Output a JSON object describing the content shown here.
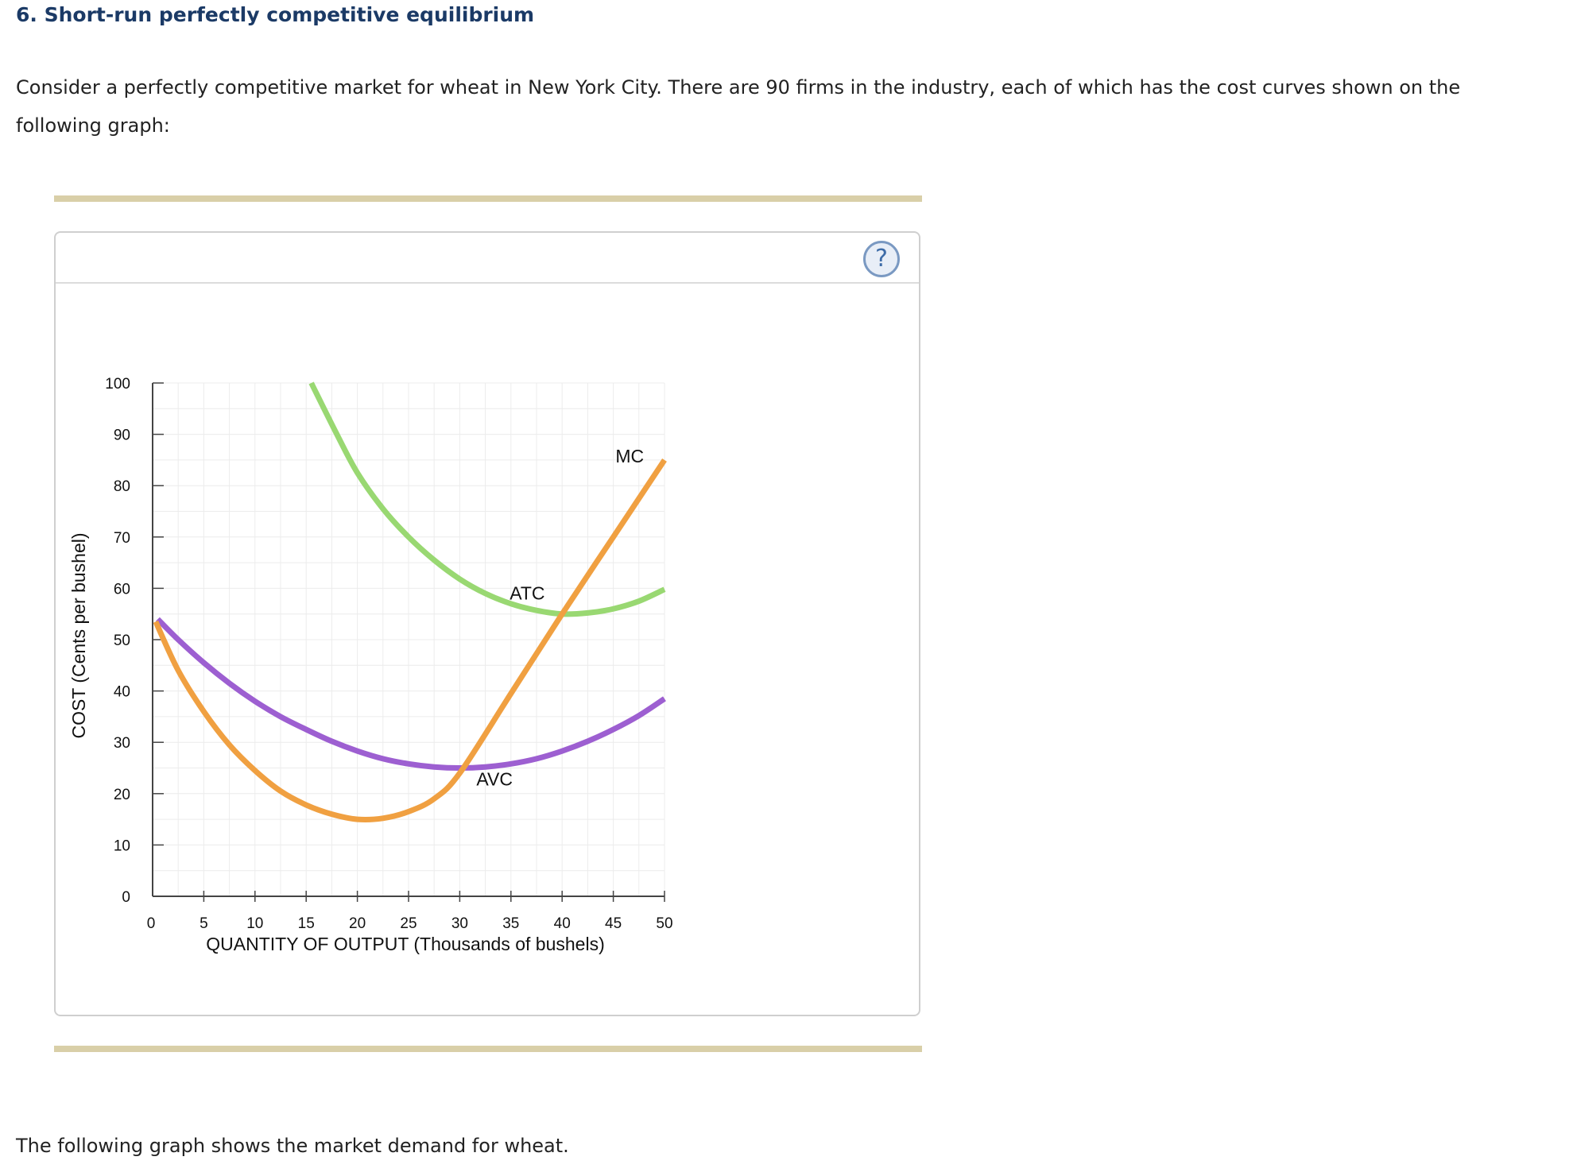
{
  "question": {
    "title": "6. Short-run perfectly competitive equilibrium",
    "intro": "Consider a perfectly competitive market for wheat in New York City. There are 90 firms in the industry, each of which has the cost curves shown on the following graph:",
    "footer": "The following graph shows the market demand for wheat."
  },
  "help_button": {
    "label": "?",
    "icon": "question-mark-icon"
  },
  "chart_data": {
    "type": "line",
    "xlabel": "QUANTITY OF OUTPUT (Thousands of bushels)",
    "ylabel": "COST (Cents per bushel)",
    "xlim": [
      0,
      50
    ],
    "ylim": [
      0,
      100
    ],
    "xticks": [
      0,
      5,
      10,
      15,
      20,
      25,
      30,
      35,
      40,
      45,
      50
    ],
    "yticks": [
      0,
      10,
      20,
      30,
      40,
      50,
      60,
      70,
      80,
      90,
      100
    ],
    "grid": true,
    "series": [
      {
        "name": "ATC",
        "color": "#99d872",
        "x": [
          15.5,
          18,
          20,
          22.5,
          25,
          27.5,
          30,
          32.5,
          35,
          37.5,
          40,
          42.5,
          45,
          47.5,
          50
        ],
        "y": [
          100,
          90,
          82.5,
          75.5,
          70,
          65.5,
          61.8,
          59,
          57,
          55.7,
          55,
          55.2,
          56,
          57.5,
          59.8
        ]
      },
      {
        "name": "AVC",
        "color": "#9d5fd1",
        "x": [
          0.5,
          2.5,
          5,
          7.5,
          10,
          12.5,
          15,
          17.5,
          20,
          22.5,
          25,
          27.5,
          30,
          32.5,
          35,
          37.5,
          40,
          42.5,
          45,
          47.5,
          50
        ],
        "y": [
          54,
          50,
          45.5,
          41.5,
          38,
          35,
          32.5,
          30.2,
          28.3,
          26.8,
          25.8,
          25.2,
          25,
          25.2,
          25.8,
          26.8,
          28.3,
          30.2,
          32.5,
          35.2,
          38.5
        ]
      },
      {
        "name": "MC",
        "color": "#f0a041",
        "x": [
          0.3,
          2.5,
          5,
          7.5,
          10,
          12.5,
          15,
          17.5,
          20,
          22.5,
          25,
          27.5,
          30,
          35,
          40,
          45,
          50
        ],
        "y": [
          53.5,
          44,
          36,
          29.5,
          24.5,
          20.5,
          17.8,
          16,
          15,
          15.2,
          16.5,
          19,
          24,
          39.5,
          55,
          70,
          85
        ]
      }
    ],
    "annotations": [
      {
        "text": "ATC",
        "x": 36.6,
        "y": 57.8
      },
      {
        "text": "AVC",
        "x": 33.4,
        "y": 21.6
      },
      {
        "text": "MC",
        "x": 46.6,
        "y": 84.5
      }
    ]
  }
}
